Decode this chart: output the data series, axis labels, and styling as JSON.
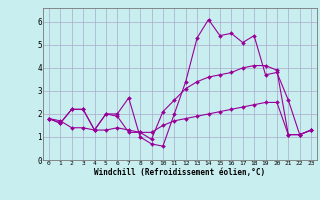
{
  "xlabel": "Windchill (Refroidissement éolien,°C)",
  "bg_color": "#c8eef0",
  "line_color": "#990099",
  "grid_color": "#aaaacc",
  "xlim": [
    -0.5,
    23.5
  ],
  "ylim": [
    0,
    6.6
  ],
  "xticks": [
    0,
    1,
    2,
    3,
    4,
    5,
    6,
    7,
    8,
    9,
    10,
    11,
    12,
    13,
    14,
    15,
    16,
    17,
    18,
    19,
    20,
    21,
    22,
    23
  ],
  "yticks": [
    0,
    1,
    2,
    3,
    4,
    5,
    6
  ],
  "series": [
    [
      1.8,
      1.6,
      2.2,
      2.2,
      1.3,
      2.0,
      2.0,
      2.7,
      1.0,
      0.7,
      0.6,
      2.0,
      3.4,
      5.3,
      6.1,
      5.4,
      5.5,
      5.1,
      5.4,
      3.7,
      3.8,
      2.6,
      1.1,
      1.3
    ],
    [
      1.8,
      1.6,
      2.2,
      2.2,
      1.3,
      2.0,
      1.9,
      1.2,
      1.2,
      0.9,
      2.1,
      2.6,
      3.1,
      3.4,
      3.6,
      3.7,
      3.8,
      4.0,
      4.1,
      4.1,
      3.9,
      1.1,
      1.1,
      1.3
    ],
    [
      1.8,
      1.7,
      1.4,
      1.4,
      1.3,
      1.3,
      1.4,
      1.3,
      1.2,
      1.2,
      1.5,
      1.7,
      1.8,
      1.9,
      2.0,
      2.1,
      2.2,
      2.3,
      2.4,
      2.5,
      2.5,
      1.1,
      1.1,
      1.3
    ]
  ]
}
